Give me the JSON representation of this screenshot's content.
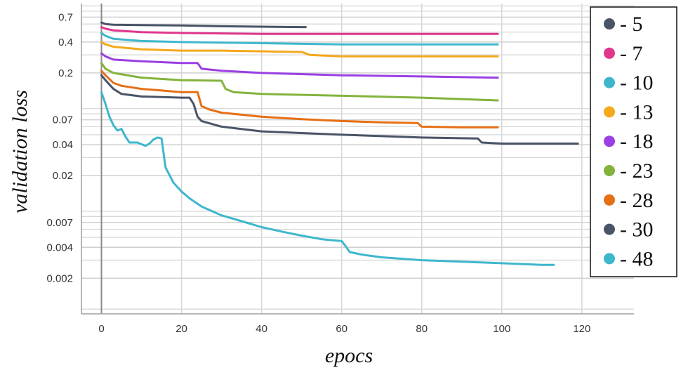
{
  "chart_data": {
    "type": "line",
    "xlabel": "epocs",
    "ylabel": "validation loss",
    "xlim": [
      -5,
      133
    ],
    "ylim": [
      0.0009,
      0.95
    ],
    "yscale": "log",
    "grid": true,
    "legend_position": "right",
    "x_ticks": [
      0,
      20,
      40,
      60,
      80,
      100,
      120
    ],
    "x_tick_labels": [
      "0",
      "20",
      "40",
      "60",
      "80",
      "100",
      "120"
    ],
    "y_ticks": [
      0.7,
      0.4,
      0.2,
      0.07,
      0.04,
      0.02,
      0.007,
      0.004,
      0.002
    ],
    "y_tick_labels": [
      "0.7",
      "0.4",
      "0.2",
      "0.07",
      "0.04",
      "0.02",
      "0.007",
      "0.004",
      "0.002"
    ],
    "minor_y_lines": [
      0.9,
      0.8,
      0.6,
      0.5,
      0.3,
      0.09,
      0.08,
      0.06,
      0.05,
      0.03,
      0.009,
      0.008,
      0.006,
      0.005,
      0.003,
      0.001
    ],
    "series": [
      {
        "name": "- 5",
        "color": "#4a5468",
        "x": [
          0,
          1,
          3,
          10,
          20,
          30,
          40,
          50,
          51
        ],
        "y": [
          0.62,
          0.6,
          0.59,
          0.585,
          0.58,
          0.57,
          0.565,
          0.56,
          0.56
        ]
      },
      {
        "name": "- 7",
        "color": "#e0378d",
        "x": [
          0,
          1,
          3,
          10,
          20,
          40,
          60,
          80,
          99
        ],
        "y": [
          0.56,
          0.54,
          0.52,
          0.5,
          0.49,
          0.48,
          0.48,
          0.48,
          0.48
        ]
      },
      {
        "name": "- 10",
        "color": "#3eb7cd",
        "x": [
          0,
          1,
          3,
          10,
          20,
          40,
          60,
          80,
          99
        ],
        "y": [
          0.49,
          0.46,
          0.43,
          0.41,
          0.4,
          0.39,
          0.38,
          0.38,
          0.38
        ]
      },
      {
        "name": "- 13",
        "color": "#f4a81c",
        "x": [
          0,
          1,
          3,
          10,
          20,
          30,
          50,
          51,
          52,
          60,
          80,
          99
        ],
        "y": [
          0.4,
          0.38,
          0.36,
          0.34,
          0.33,
          0.33,
          0.32,
          0.31,
          0.3,
          0.29,
          0.29,
          0.29
        ]
      },
      {
        "name": "- 18",
        "color": "#9b3fe3",
        "x": [
          0,
          1,
          3,
          10,
          20,
          24,
          25,
          30,
          40,
          60,
          80,
          99
        ],
        "y": [
          0.31,
          0.29,
          0.27,
          0.26,
          0.25,
          0.25,
          0.22,
          0.21,
          0.2,
          0.19,
          0.185,
          0.18
        ]
      },
      {
        "name": "- 23",
        "color": "#84b33d",
        "x": [
          0,
          1,
          3,
          10,
          20,
          30,
          31,
          33,
          40,
          60,
          80,
          99
        ],
        "y": [
          0.25,
          0.22,
          0.2,
          0.18,
          0.17,
          0.168,
          0.14,
          0.13,
          0.125,
          0.12,
          0.115,
          0.108
        ]
      },
      {
        "name": "- 28",
        "color": "#e56f15",
        "x": [
          0,
          1,
          3,
          5,
          10,
          15,
          20,
          24,
          25,
          27,
          30,
          40,
          50,
          60,
          70,
          79,
          80,
          90,
          99
        ],
        "y": [
          0.21,
          0.19,
          0.16,
          0.15,
          0.14,
          0.135,
          0.13,
          0.13,
          0.095,
          0.088,
          0.082,
          0.075,
          0.071,
          0.068,
          0.066,
          0.065,
          0.06,
          0.059,
          0.059
        ]
      },
      {
        "name": "- 30",
        "color": "#4a5468",
        "x": [
          0,
          1,
          3,
          5,
          10,
          20,
          22,
          23,
          24,
          25,
          30,
          40,
          60,
          80,
          94,
          95,
          100,
          119
        ],
        "y": [
          0.19,
          0.17,
          0.14,
          0.125,
          0.118,
          0.115,
          0.115,
          0.1,
          0.075,
          0.068,
          0.06,
          0.054,
          0.05,
          0.047,
          0.046,
          0.042,
          0.041,
          0.041
        ]
      },
      {
        "name": "- 48",
        "color": "#3eb7cd",
        "x": [
          0,
          1,
          2,
          3,
          4,
          5,
          6,
          7,
          9,
          11,
          12,
          13,
          14,
          15,
          16,
          18,
          20,
          22,
          25,
          30,
          35,
          40,
          45,
          50,
          55,
          60,
          61,
          62,
          65,
          70,
          80,
          90,
          100,
          110,
          113
        ],
        "y": [
          0.13,
          0.1,
          0.075,
          0.062,
          0.055,
          0.057,
          0.048,
          0.042,
          0.042,
          0.039,
          0.041,
          0.045,
          0.047,
          0.046,
          0.024,
          0.017,
          0.014,
          0.012,
          0.01,
          0.0082,
          0.0072,
          0.0063,
          0.0057,
          0.0052,
          0.0048,
          0.0046,
          0.0041,
          0.0036,
          0.0034,
          0.0032,
          0.003,
          0.0029,
          0.0028,
          0.0027,
          0.0027
        ]
      }
    ]
  }
}
